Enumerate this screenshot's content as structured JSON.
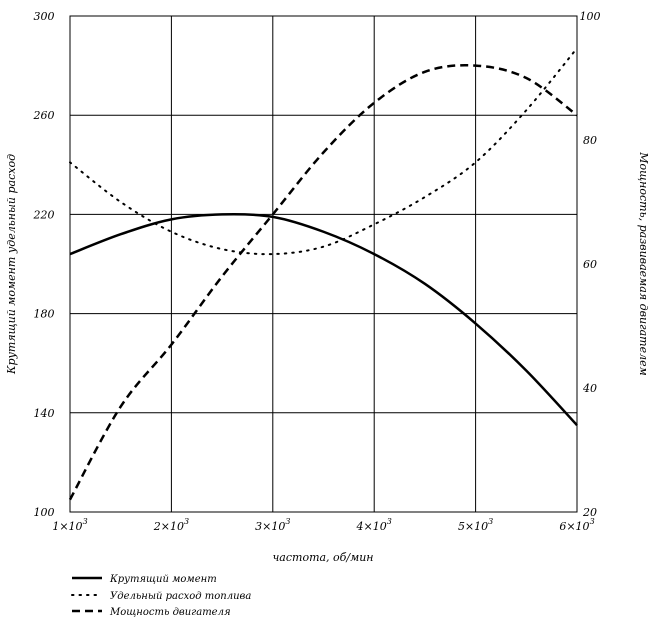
{
  "chart_data": {
    "type": "line",
    "x_label": "частота, об/мин",
    "y_left_label": "Крутящий момент удельный расход",
    "y_right_label": "Мощность, развиваемая двигателем",
    "x_ticks": [
      {
        "value": 1000,
        "mantissa": "1×10",
        "exp": "3"
      },
      {
        "value": 2000,
        "mantissa": "2×10",
        "exp": "3"
      },
      {
        "value": 3000,
        "mantissa": "3×10",
        "exp": "3"
      },
      {
        "value": 4000,
        "mantissa": "4×10",
        "exp": "3"
      },
      {
        "value": 5000,
        "mantissa": "5×10",
        "exp": "3"
      },
      {
        "value": 6000,
        "mantissa": "6×10",
        "exp": "3"
      }
    ],
    "y_left_ticks": [
      "100",
      "140",
      "180",
      "220",
      "260",
      "300"
    ],
    "y_right_ticks": [
      "20",
      "40",
      "60",
      "80",
      "100"
    ],
    "xlim": [
      1000,
      6000
    ],
    "ylim_left": [
      100,
      300
    ],
    "ylim_right": [
      20,
      100
    ],
    "grid": true,
    "legend_position": "bottom-left",
    "series": [
      {
        "name": "Крутящий момент",
        "axis": "left",
        "style": "solid",
        "x": [
          1000,
          1500,
          2000,
          2500,
          3000,
          3500,
          4000,
          4500,
          5000,
          5500,
          6000
        ],
        "y": [
          204,
          212,
          218,
          220,
          219,
          213,
          204,
          192,
          176,
          157,
          135
        ]
      },
      {
        "name": "Удельный расход топлива",
        "axis": "left",
        "style": "dotted",
        "x": [
          1000,
          1500,
          2000,
          2500,
          3000,
          3500,
          4000,
          4500,
          5000,
          5500,
          6000
        ],
        "y": [
          241,
          225,
          213,
          206,
          204,
          207,
          216,
          227,
          241,
          262,
          287
        ]
      },
      {
        "name": "Мощность двигателя",
        "axis": "right",
        "style": "dashed",
        "x": [
          1000,
          1500,
          2000,
          2500,
          3000,
          3500,
          4000,
          4500,
          5000,
          5500,
          6000
        ],
        "y": [
          22,
          37,
          47,
          58,
          68,
          78,
          86,
          91,
          92,
          90,
          84
        ]
      }
    ]
  }
}
